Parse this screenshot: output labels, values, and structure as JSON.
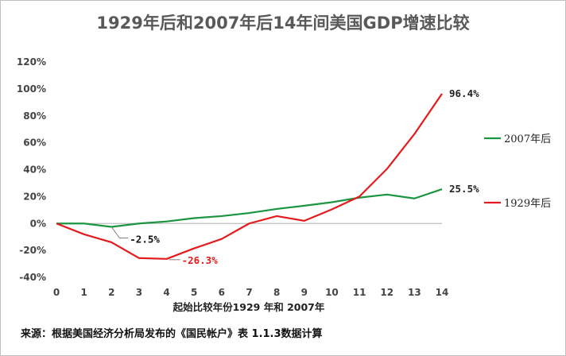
{
  "chart_data": {
    "type": "line",
    "title": "1929年后和2007年后14年间美国GDP增速比较",
    "xlabel": "起始比较年份1929 年和 2007年",
    "ylabel": "",
    "x": [
      0,
      1,
      2,
      3,
      4,
      5,
      6,
      7,
      8,
      9,
      10,
      11,
      12,
      13,
      14
    ],
    "ylim": [
      -40,
      120
    ],
    "yticks": [
      "120%",
      "100%",
      "80%",
      "60%",
      "40%",
      "20%",
      "0%",
      "-20%",
      "-40%"
    ],
    "ytick_values": [
      120,
      100,
      80,
      60,
      40,
      20,
      0,
      -20,
      -40
    ],
    "xticks": [
      "0",
      "1",
      "2",
      "3",
      "4",
      "5",
      "6",
      "7",
      "8",
      "9",
      "10",
      "11",
      "12",
      "13",
      "14"
    ],
    "series": [
      {
        "name": "2007年后",
        "color": "#1a9641",
        "values": [
          0,
          0,
          -2.5,
          0,
          1.5,
          4,
          5.5,
          7.8,
          10.8,
          13.2,
          15.8,
          19.2,
          21.5,
          18.6,
          25.5
        ],
        "end_label": "25.5%"
      },
      {
        "name": "1929年后",
        "color": "#e41a1c",
        "values": [
          0,
          -8,
          -14,
          -25.7,
          -26.3,
          -18.5,
          -11.5,
          0,
          5.5,
          2,
          10.5,
          20,
          40.5,
          66.5,
          96.4
        ],
        "end_label": "96.4%"
      }
    ],
    "annotations": [
      {
        "text": "-2.5%",
        "series": "2007年后",
        "x": 2,
        "color": "#111111"
      },
      {
        "text": "-26.3%",
        "series": "1929年后",
        "x": 4,
        "color": "#e41a1c"
      }
    ],
    "legend_position": "right",
    "grid": false
  },
  "source_note": "来源：根据美国经济分析局发布的《国民帐户》表 1.1.3数据计算"
}
